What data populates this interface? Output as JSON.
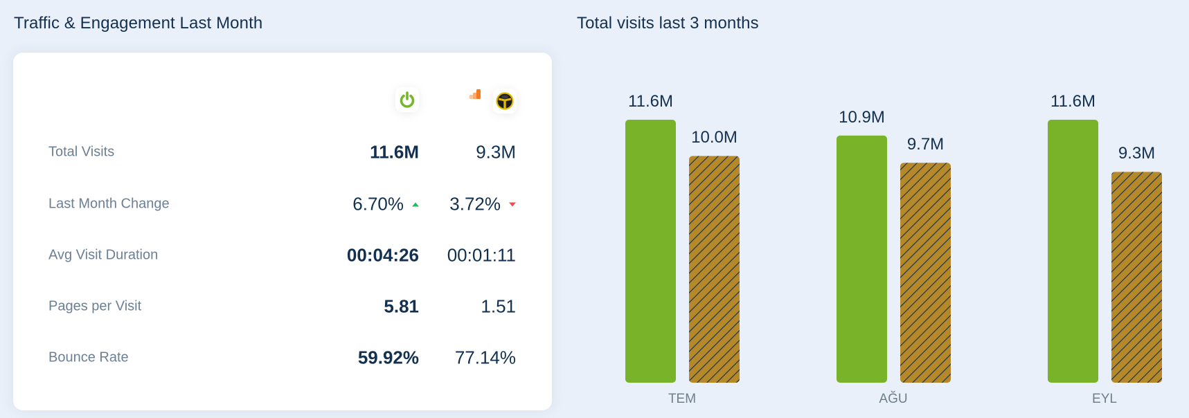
{
  "left": {
    "title": "Traffic & Engagement Last Month",
    "icons": [
      "power-icon",
      "analytics-bars-icon",
      "yellow-black-brand-icon"
    ],
    "rows": [
      {
        "label": "Total Visits",
        "value1": "11.6M",
        "value2": "9.3M"
      },
      {
        "label": "Last Month Change",
        "value1": "6.70%",
        "value1_trend": "up",
        "value2": "3.72%",
        "value2_trend": "down"
      },
      {
        "label": "Avg Visit Duration",
        "value1": "00:04:26",
        "value2": "00:01:11"
      },
      {
        "label": "Pages per Visit",
        "value1": "5.81",
        "value2": "1.51"
      },
      {
        "label": "Bounce Rate",
        "value1": "59.92%",
        "value2": "77.14%"
      }
    ],
    "colors": {
      "up": "#1fbf5f",
      "down": "#ef4b55"
    }
  },
  "right": {
    "title": "Total visits last 3 months"
  },
  "chart_data": {
    "type": "bar",
    "title": "Total visits last 3 months",
    "categories": [
      "TEM",
      "AĞU",
      "EYL"
    ],
    "series": [
      {
        "name": "site-1",
        "color": "#78b32a",
        "pattern": "solid",
        "values": [
          11.6,
          10.9,
          11.6
        ],
        "labels": [
          "11.6M",
          "10.9M",
          "11.6M"
        ]
      },
      {
        "name": "site-2",
        "color": "#b5892a",
        "pattern": "hatched",
        "values": [
          10.0,
          9.7,
          9.3
        ],
        "labels": [
          "10.0M",
          "9.7M",
          "9.3M"
        ]
      }
    ],
    "unit": "M",
    "ylim": [
      0,
      11.6
    ],
    "grid": false,
    "legend": "none"
  }
}
